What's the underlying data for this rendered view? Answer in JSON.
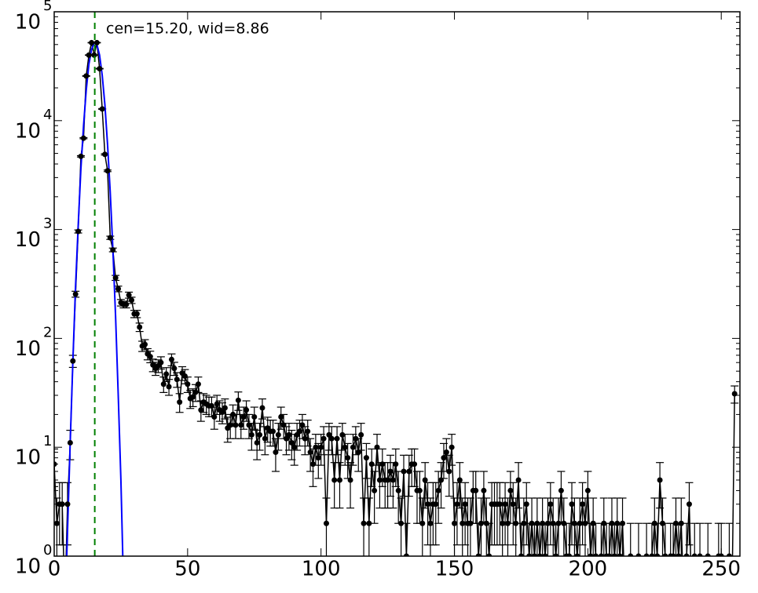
{
  "chart_data": {
    "type": "scatter",
    "annotation": "cen=15.20, wid=8.86",
    "annotation_color": "#008000",
    "log_scale": "y",
    "error_bars": "poisson",
    "color": "#000000",
    "xlim": [
      0,
      257
    ],
    "ylim": [
      1,
      100000
    ],
    "xticks": [
      0,
      50,
      100,
      150,
      200,
      250
    ],
    "yticks": [
      {
        "value": 1,
        "label": "10",
        "exponent": "0"
      },
      {
        "value": 10,
        "label": "10",
        "exponent": "1"
      },
      {
        "value": 100,
        "label": "10",
        "exponent": "2"
      },
      {
        "value": 1000,
        "label": "10",
        "exponent": "3"
      },
      {
        "value": 10000,
        "label": "10",
        "exponent": "4"
      },
      {
        "value": 100000,
        "label": "10",
        "exponent": "5"
      }
    ],
    "x": [
      0,
      1,
      2,
      3,
      4,
      5,
      6,
      7,
      8,
      9,
      10,
      11,
      12,
      13,
      14,
      15,
      16,
      17,
      18,
      19,
      20,
      21,
      22,
      23,
      24,
      25,
      26,
      27,
      28,
      29,
      30,
      31,
      32,
      33,
      34,
      35,
      36,
      37,
      38,
      39,
      40,
      41,
      42,
      43,
      44,
      45,
      46,
      47,
      48,
      49,
      50,
      51,
      52,
      53,
      54,
      55,
      56,
      57,
      58,
      59,
      60,
      61,
      62,
      63,
      64,
      65,
      66,
      67,
      68,
      69,
      70,
      71,
      72,
      73,
      74,
      75,
      76,
      77,
      78,
      79,
      80,
      81,
      82,
      83,
      84,
      85,
      86,
      87,
      88,
      89,
      90,
      91,
      92,
      93,
      94,
      95,
      96,
      97,
      98,
      99,
      100,
      101,
      102,
      103,
      104,
      105,
      106,
      107,
      108,
      109,
      110,
      111,
      112,
      113,
      114,
      115,
      116,
      117,
      118,
      119,
      120,
      121,
      122,
      123,
      124,
      125,
      126,
      127,
      128,
      129,
      130,
      131,
      132,
      133,
      134,
      135,
      136,
      137,
      138,
      139,
      140,
      141,
      142,
      143,
      144,
      145,
      146,
      147,
      148,
      149,
      150,
      151,
      152,
      153,
      154,
      155,
      156,
      157,
      158,
      159,
      160,
      161,
      162,
      163,
      164,
      165,
      166,
      167,
      168,
      169,
      170,
      171,
      172,
      173,
      174,
      175,
      176,
      177,
      178,
      179,
      180,
      181,
      182,
      183,
      184,
      185,
      186,
      187,
      188,
      189,
      190,
      191,
      192,
      193,
      194,
      195,
      196,
      197,
      198,
      199,
      200,
      201,
      202,
      203,
      204,
      205,
      206,
      207,
      208,
      209,
      210,
      211,
      212,
      213,
      214,
      215,
      216,
      217,
      218,
      219,
      220,
      221,
      222,
      223,
      224,
      225,
      226,
      227,
      228,
      229,
      230,
      231,
      232,
      233,
      234,
      235,
      236,
      237,
      238,
      239,
      240,
      241,
      242,
      243,
      244,
      245,
      246,
      247,
      248,
      249,
      250,
      251,
      252,
      253,
      254,
      255
    ],
    "values": [
      7,
      2,
      3,
      3,
      0,
      3,
      11,
      62,
      255,
      960,
      4700,
      6900,
      25700,
      40000,
      52000,
      40000,
      52000,
      30000,
      12800,
      4900,
      3460,
      840,
      650,
      360,
      285,
      213,
      205,
      205,
      250,
      224,
      168,
      168,
      127,
      85,
      88,
      72,
      68,
      57,
      53,
      56,
      60,
      38,
      47,
      36,
      64,
      53,
      42,
      26,
      48,
      45,
      38,
      28,
      29,
      32,
      38,
      22,
      26,
      25,
      24,
      24,
      19,
      25,
      22,
      21,
      23,
      15,
      16,
      20,
      16,
      27,
      16,
      19,
      22,
      16,
      13,
      19,
      11,
      13,
      23,
      12,
      15,
      14,
      14,
      9,
      13,
      19,
      16,
      12,
      13,
      11,
      10,
      13,
      14,
      16,
      12,
      14,
      9,
      7,
      10,
      8,
      10,
      12,
      2,
      13,
      12,
      5,
      12,
      5,
      13,
      10,
      8,
      5,
      10,
      12,
      9,
      13,
      2,
      8,
      2,
      7,
      4,
      10,
      5,
      7,
      5,
      5,
      6,
      5,
      7,
      4,
      2,
      6,
      1,
      6,
      7,
      7,
      4,
      4,
      2,
      5,
      3,
      2,
      3,
      3,
      4,
      5,
      8,
      9,
      6,
      10,
      2,
      3,
      5,
      2,
      3,
      2,
      2,
      4,
      4,
      1,
      2,
      4,
      2,
      1,
      3,
      3,
      3,
      3,
      2,
      3,
      2,
      4,
      3,
      2,
      5,
      1,
      2,
      3,
      1,
      2,
      1,
      2,
      1,
      2,
      1,
      2,
      3,
      2,
      1,
      2,
      4,
      2,
      1,
      1,
      3,
      2,
      1,
      2,
      3,
      2,
      4,
      1,
      2,
      1,
      0,
      1,
      2,
      1,
      1,
      2,
      1,
      2,
      1,
      2,
      0,
      0,
      1,
      0,
      0,
      1,
      0,
      0,
      1,
      0,
      1,
      2,
      1,
      5,
      2,
      1,
      0,
      1,
      1,
      2,
      1,
      2,
      0,
      1,
      3,
      0,
      1,
      0,
      1,
      0,
      0,
      1,
      0,
      0,
      0,
      1,
      1,
      0,
      0,
      1,
      0,
      31
    ],
    "fit": {
      "color": "#0000ff",
      "x": [
        4.7,
        6,
        7,
        8,
        9,
        10,
        11,
        12,
        13,
        14,
        15,
        16,
        17,
        18,
        19,
        20,
        21,
        22,
        23,
        24,
        25,
        25.7
      ],
      "values": [
        1,
        11,
        62,
        300,
        1100,
        3600,
        9000,
        19000,
        33000,
        45000,
        52000,
        50000,
        40000,
        26000,
        14000,
        6000,
        2200,
        650,
        160,
        30,
        5,
        1
      ]
    },
    "vline": {
      "x": 15.2,
      "color": "#008000",
      "style": "dashed"
    }
  }
}
